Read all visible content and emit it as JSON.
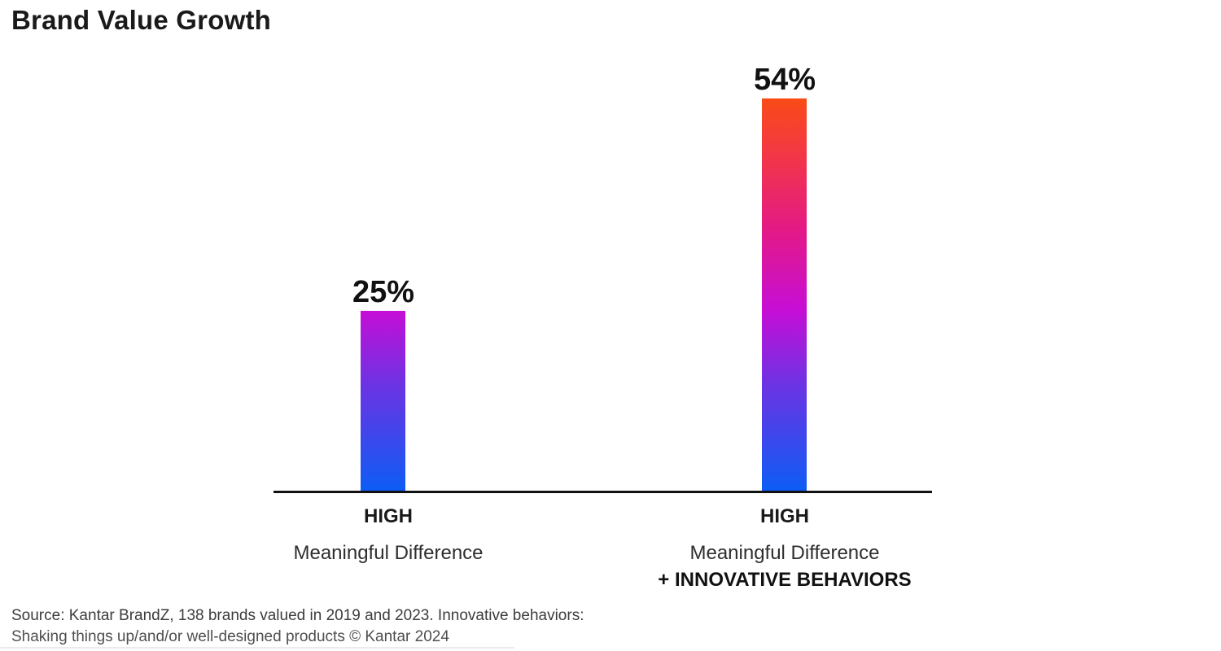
{
  "title": "Brand Value Growth",
  "chart_data": {
    "type": "bar",
    "title": "Brand Value Growth",
    "categories": [
      "HIGH Meaningful Difference",
      "HIGH Meaningful Difference + INNOVATIVE BEHAVIORS"
    ],
    "values": [
      25,
      54
    ],
    "value_labels": [
      "25%",
      "54%"
    ],
    "xlabel": "",
    "ylabel": "",
    "ylim": [
      0,
      60
    ],
    "grid": false,
    "legend": "none",
    "bar_gradient_bottom_to_top": [
      "#0e5cf5",
      "#6c33e3",
      "#c60ed6",
      "#e41a84",
      "#f23648",
      "#f94b16"
    ]
  },
  "bars": [
    {
      "value_label": "25%",
      "line1": "HIGH",
      "line2": "Meaningful Difference",
      "line3": ""
    },
    {
      "value_label": "54%",
      "line1": "HIGH",
      "line2": "Meaningful Difference",
      "line3": "+ INNOVATIVE BEHAVIORS"
    }
  ],
  "source": {
    "line1": "Source: Kantar BrandZ, 138 brands valued in 2019 and 2023. Innovative behaviors:",
    "line2": "Shaking things up/and/or well-designed products © Kantar 2024"
  },
  "colors": {
    "gradient_top_orange": "#f94b16",
    "gradient_red": "#f23648",
    "gradient_pink": "#e41a84",
    "gradient_magenta": "#c60ed6",
    "gradient_violet": "#6c33e3",
    "gradient_bottom_blue": "#0e5cf5",
    "axis": "#111111",
    "text": "#1a1a1a"
  }
}
